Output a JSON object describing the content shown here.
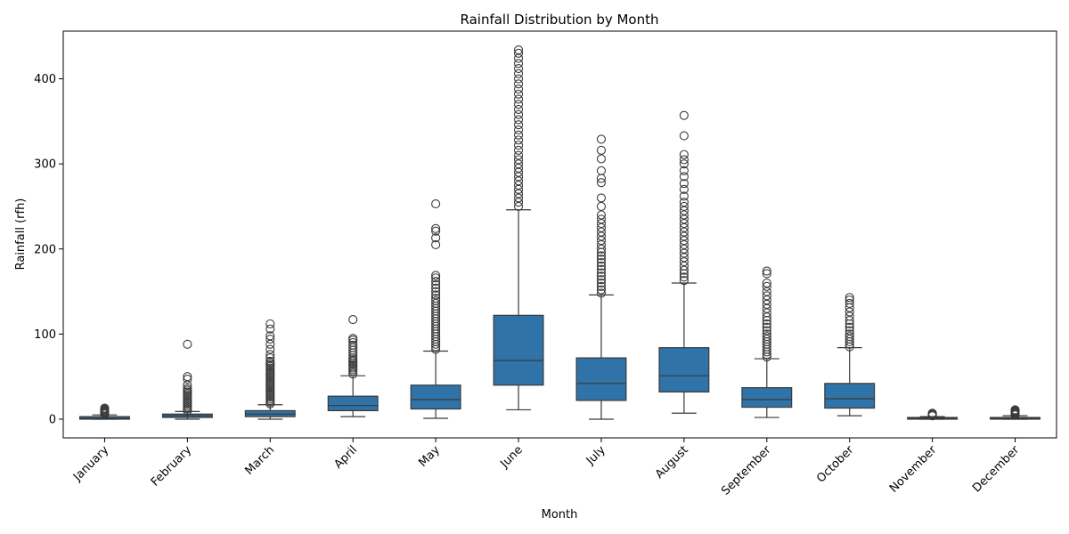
{
  "chart_data": {
    "type": "box",
    "title": "Rainfall Distribution by Month",
    "xlabel": "Month",
    "ylabel": "Rainfall (rfh)",
    "ylim": [
      -22,
      456
    ],
    "yticks": [
      0,
      100,
      200,
      300,
      400
    ],
    "grid": false,
    "legend": "none",
    "box_color": "#2f73a8",
    "line_color": "#3a3a3a",
    "categories": [
      "January",
      "February",
      "March",
      "April",
      "May",
      "June",
      "July",
      "August",
      "September",
      "October",
      "November",
      "December"
    ],
    "boxes": [
      {
        "min": 0,
        "q1": 0,
        "median": 1,
        "q3": 3,
        "max": 5,
        "outliers": [
          6,
          7,
          8,
          9,
          10,
          11,
          12,
          13
        ]
      },
      {
        "min": 0,
        "q1": 2,
        "median": 4,
        "q3": 6,
        "max": 9,
        "outliers": [
          10,
          12,
          14,
          16,
          18,
          20,
          22,
          24,
          26,
          28,
          30,
          32,
          34,
          36,
          40,
          47,
          50,
          88
        ]
      },
      {
        "min": 0,
        "q1": 3,
        "median": 6,
        "q3": 10,
        "max": 17,
        "outliers": [
          18,
          20,
          22,
          24,
          26,
          28,
          30,
          32,
          34,
          36,
          38,
          40,
          42,
          44,
          46,
          48,
          50,
          52,
          54,
          56,
          58,
          60,
          62,
          64,
          66,
          68,
          72,
          76,
          82,
          88,
          94,
          98,
          106,
          112
        ]
      },
      {
        "min": 3,
        "q1": 10,
        "median": 16,
        "q3": 27,
        "max": 51,
        "outliers": [
          53,
          56,
          58,
          60,
          62,
          64,
          66,
          68,
          70,
          72,
          75,
          78,
          81,
          84,
          87,
          90,
          93,
          95,
          117
        ]
      },
      {
        "min": 1,
        "q1": 12,
        "median": 23,
        "q3": 40,
        "max": 80,
        "outliers": [
          82,
          85,
          88,
          91,
          94,
          97,
          100,
          103,
          106,
          109,
          112,
          115,
          118,
          121,
          124,
          127,
          130,
          133,
          136,
          139,
          142,
          146,
          150,
          154,
          158,
          162,
          166,
          169,
          205,
          213,
          221,
          224,
          253
        ]
      },
      {
        "min": 11,
        "q1": 40,
        "median": 69,
        "q3": 122,
        "max": 246,
        "outliers": [
          250,
          255,
          260,
          265,
          270,
          275,
          280,
          285,
          290,
          295,
          300,
          305,
          310,
          316,
          322,
          328,
          334,
          340,
          346,
          352,
          358,
          364,
          370,
          376,
          382,
          388,
          394,
          400,
          406,
          412,
          418,
          424,
          430,
          434
        ]
      },
      {
        "min": 0,
        "q1": 22,
        "median": 42,
        "q3": 72,
        "max": 146,
        "outliers": [
          148,
          152,
          156,
          160,
          164,
          168,
          172,
          176,
          180,
          184,
          188,
          192,
          196,
          200,
          205,
          210,
          215,
          220,
          225,
          230,
          235,
          240,
          250,
          260,
          278,
          283,
          292,
          306,
          316,
          329
        ]
      },
      {
        "min": 7,
        "q1": 32,
        "median": 51,
        "q3": 84,
        "max": 160,
        "outliers": [
          163,
          167,
          171,
          175,
          180,
          185,
          190,
          195,
          200,
          205,
          210,
          215,
          220,
          225,
          230,
          235,
          240,
          245,
          250,
          255,
          262,
          270,
          277,
          285,
          292,
          300,
          305,
          311,
          333,
          357
        ]
      },
      {
        "min": 2,
        "q1": 14,
        "median": 23,
        "q3": 37,
        "max": 71,
        "outliers": [
          73,
          76,
          79,
          82,
          85,
          88,
          91,
          94,
          97,
          100,
          104,
          108,
          112,
          116,
          120,
          125,
          130,
          135,
          140,
          145,
          150,
          156,
          160,
          171,
          174
        ]
      },
      {
        "min": 4,
        "q1": 13,
        "median": 24,
        "q3": 42,
        "max": 84,
        "outliers": [
          85,
          88,
          91,
          94,
          97,
          100,
          104,
          108,
          112,
          116,
          121,
          126,
          131,
          136,
          140,
          143
        ]
      },
      {
        "min": 0,
        "q1": 0,
        "median": 1,
        "q3": 2,
        "max": 3,
        "outliers": [
          4,
          5,
          6,
          7
        ]
      },
      {
        "min": 0,
        "q1": 0,
        "median": 1,
        "q3": 2,
        "max": 4,
        "outliers": [
          5,
          6,
          7,
          8,
          9,
          10,
          11
        ]
      }
    ]
  }
}
